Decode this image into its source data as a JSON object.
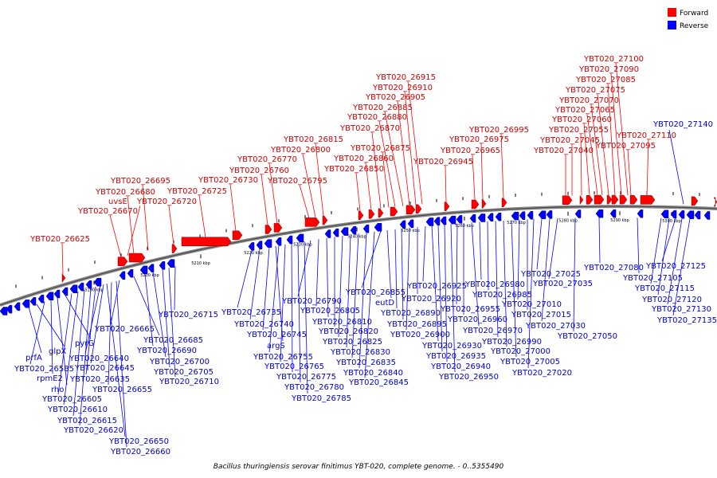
{
  "title": "Bacillus thuringiensis serovar finitimus YBT-020, complete genome. - 0..5355490",
  "legend": [
    {
      "label": "Forward",
      "color": "#ff0000"
    },
    {
      "label": "Reverse",
      "color": "#0000ff"
    }
  ],
  "ticks": [
    "5190 kbp",
    "5200 kbp",
    "5210 kbp",
    "5220 kbp",
    "5230 kbp",
    "5240 kbp",
    "5250 kbp",
    "5260 kbp",
    "5270 kbp",
    "5280 kbp",
    "5290 kbp",
    "5300 kbp"
  ],
  "forward_genes": [
    "YBT020_26625",
    "YBT020_26670",
    "uvsE",
    "YBT020_26680",
    "YBT020_26695",
    "YBT020_26720",
    "YBT020_26725",
    "YBT020_26730",
    "YBT020_26760",
    "YBT020_26770",
    "YBT020_26795",
    "YBT020_26800",
    "YBT020_26815",
    "YBT020_26850",
    "YBT020_26860",
    "YBT020_26870",
    "YBT020_26875",
    "YBT020_26880",
    "YBT020_26885",
    "YBT020_26905",
    "YBT020_26910",
    "YBT020_26915",
    "YBT020_26945",
    "YBT020_26965",
    "YBT020_26975",
    "YBT020_26995",
    "YBT020_27040",
    "YBT020_27045",
    "YBT020_27055",
    "YBT020_27060",
    "YBT020_27065",
    "YBT020_27070",
    "YBT020_27075",
    "YBT020_27085",
    "YBT020_27090",
    "YBT020_27100",
    "YBT020_27095",
    "YBT020_27110"
  ],
  "reverse_genes": [
    "prfA",
    "glpX",
    "YBT020_26585",
    "rpmE2",
    "rho",
    "pyrG",
    "YBT020_26605",
    "YBT020_26610",
    "YBT020_26615",
    "YBT020_26620",
    "YBT020_26635",
    "YBT020_26640",
    "YBT020_26645",
    "YBT020_26650",
    "YBT020_26655",
    "YBT020_26660",
    "YBT020_26665",
    "YBT020_26685",
    "YBT020_26690",
    "YBT020_26700",
    "YBT020_26705",
    "YBT020_26710",
    "YBT020_26715",
    "YBT020_26735",
    "YBT020_26740",
    "YBT020_26745",
    "argS",
    "YBT020_26755",
    "YBT020_26765",
    "YBT020_26775",
    "YBT020_26780",
    "YBT020_26785",
    "YBT020_26790",
    "YBT020_26805",
    "YBT020_26810",
    "YBT020_26820",
    "YBT020_26825",
    "YBT020_26830",
    "YBT020_26835",
    "YBT020_26840",
    "YBT020_26845",
    "YBT020_26855",
    "eutD",
    "YBT020_26890",
    "YBT020_26895",
    "YBT020_26900",
    "YBT020_26920",
    "YBT020_26925",
    "YBT020_26930",
    "YBT020_26935",
    "YBT020_26940",
    "YBT020_26950",
    "YBT020_26955",
    "YBT020_26960",
    "YBT020_26970",
    "YBT020_26980",
    "YBT020_26985",
    "YBT020_26990",
    "YBT020_27000",
    "YBT020_27005",
    "YBT020_27010",
    "YBT020_27015",
    "YBT020_27020",
    "YBT020_27025",
    "YBT020_27030",
    "YBT020_27035",
    "YBT020_27050",
    "YBT020_27080",
    "YBT020_27105",
    "YBT020_27115",
    "YBT020_27120",
    "YBT020_27125",
    "YBT020_27130",
    "YBT020_27135",
    "YBT020_27140"
  ]
}
